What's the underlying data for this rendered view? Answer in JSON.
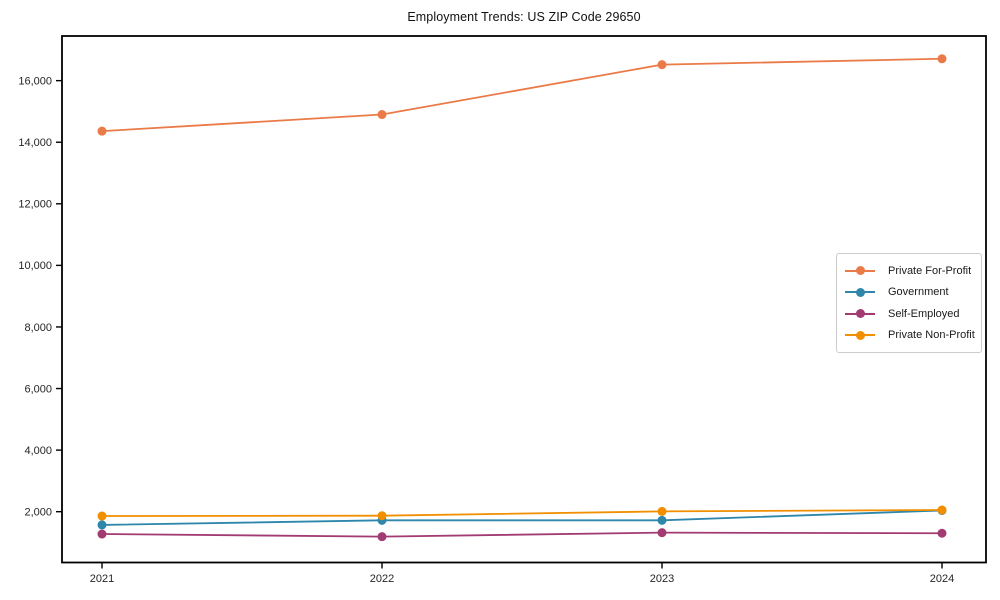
{
  "title": "Employment Trends: US ZIP Code 29650",
  "chart_data": {
    "type": "line",
    "title": "Employment Trends: US ZIP Code 29650",
    "x": [
      2021,
      2022,
      2023,
      2024
    ],
    "series": [
      {
        "name": "Private For-Profit",
        "color": "#ea7a47",
        "values": [
          14360,
          14900,
          16520,
          16710
        ]
      },
      {
        "name": "Government",
        "color": "#2e86ab",
        "values": [
          1570,
          1720,
          1720,
          2040
        ]
      },
      {
        "name": "Self-Employed",
        "color": "#a23b72",
        "values": [
          1275,
          1190,
          1320,
          1300
        ]
      },
      {
        "name": "Private Non-Profit",
        "color": "#f18f01",
        "values": [
          1860,
          1870,
          2010,
          2055
        ]
      }
    ],
    "yticks": [
      2000,
      4000,
      6000,
      8000,
      10000,
      12000,
      14000,
      16000
    ],
    "ylim": [
      350,
      17450
    ],
    "xlabel": "",
    "ylabel": "",
    "grid": false,
    "legend_position": "center-right",
    "marker": "circle"
  }
}
